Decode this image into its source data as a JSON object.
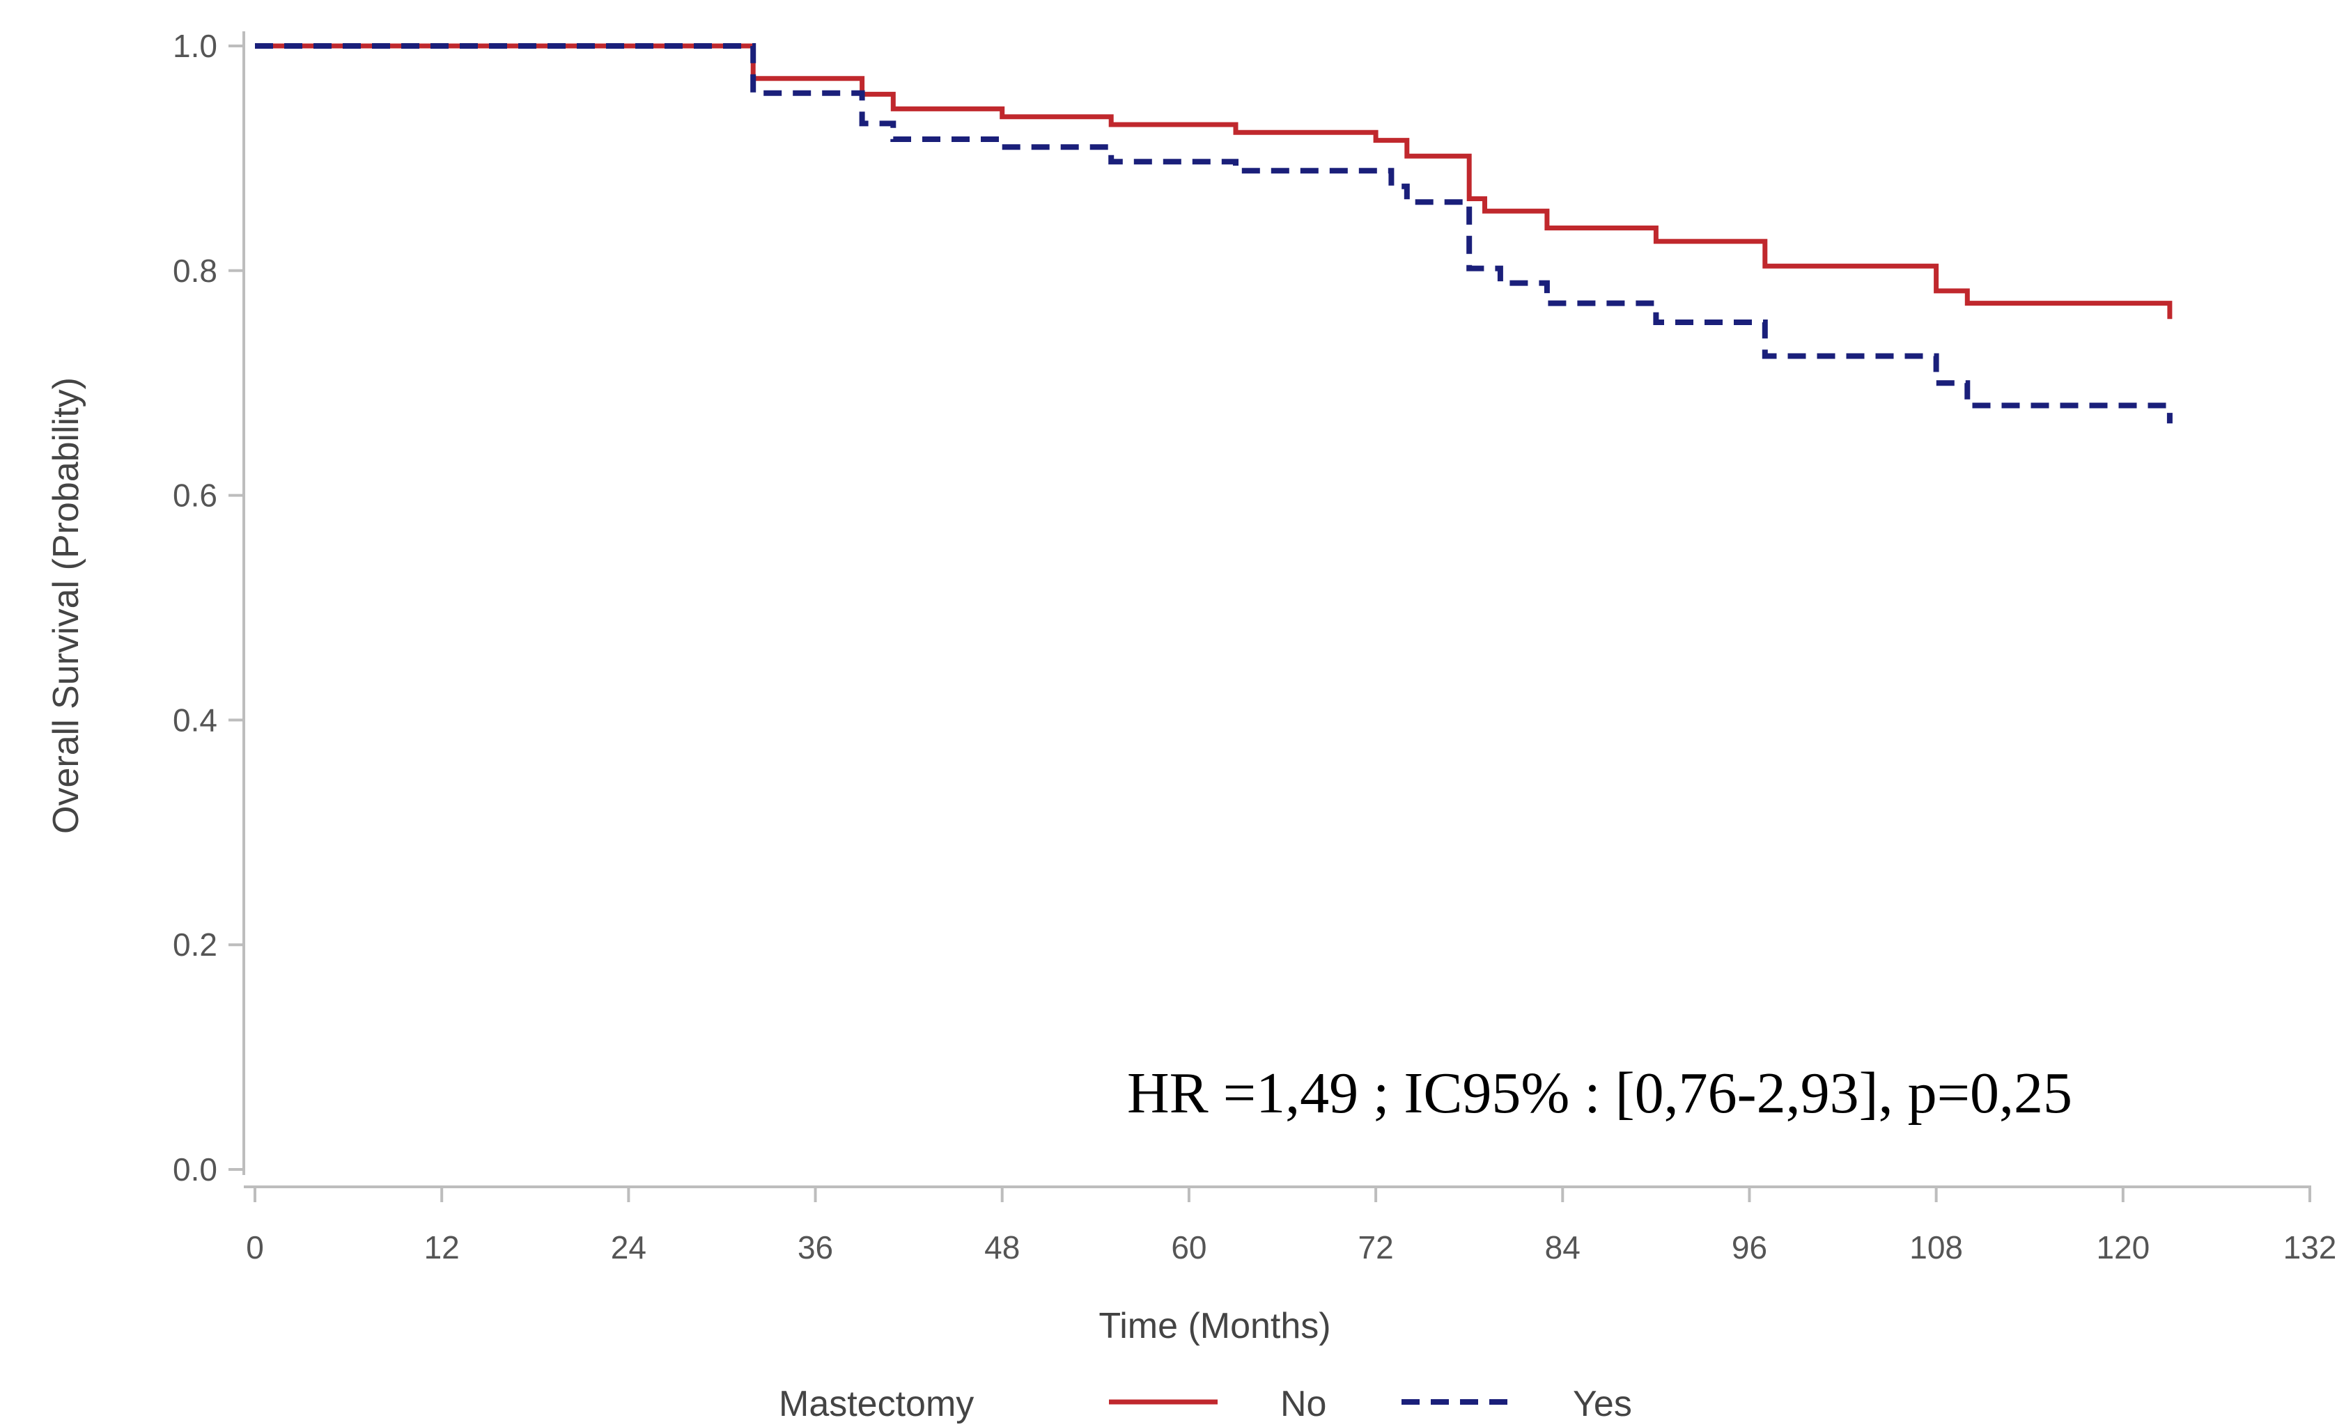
{
  "chart_data": {
    "type": "line",
    "title": "",
    "xlabel": "Time (Months)",
    "ylabel": "Overall Survival (Probability)",
    "xlim": [
      0,
      132
    ],
    "ylim": [
      0,
      1
    ],
    "x_ticks": [
      "0",
      "12",
      "24",
      "36",
      "48",
      "60",
      "72",
      "84",
      "96",
      "108",
      "120",
      "132"
    ],
    "y_ticks": [
      "0.0",
      "0.2",
      "0.4",
      "0.6",
      "0.8",
      "1.0"
    ],
    "legend": {
      "title": "Mastectomy",
      "placement": "bottom"
    },
    "annotation": "HR =1,49 ; IC95% : [0,76-2,93], p=0,25",
    "step": true,
    "grid": false,
    "series": [
      {
        "name": "No",
        "color": "#c0282d",
        "dash": "solid",
        "points": [
          [
            0,
            1.0
          ],
          [
            32,
            1.0
          ],
          [
            32,
            0.971
          ],
          [
            39,
            0.971
          ],
          [
            39,
            0.957
          ],
          [
            41,
            0.957
          ],
          [
            41,
            0.944
          ],
          [
            48,
            0.944
          ],
          [
            48,
            0.937
          ],
          [
            55,
            0.937
          ],
          [
            55,
            0.93
          ],
          [
            63,
            0.93
          ],
          [
            63,
            0.923
          ],
          [
            72,
            0.923
          ],
          [
            72,
            0.916
          ],
          [
            74,
            0.916
          ],
          [
            74,
            0.902
          ],
          [
            78,
            0.902
          ],
          [
            78,
            0.864
          ],
          [
            79,
            0.864
          ],
          [
            79,
            0.853
          ],
          [
            83,
            0.853
          ],
          [
            83,
            0.838
          ],
          [
            90,
            0.838
          ],
          [
            90,
            0.826
          ],
          [
            97,
            0.826
          ],
          [
            97,
            0.804
          ],
          [
            108,
            0.804
          ],
          [
            108,
            0.782
          ],
          [
            110,
            0.782
          ],
          [
            110,
            0.771
          ],
          [
            123,
            0.771
          ],
          [
            123,
            0.757
          ]
        ]
      },
      {
        "name": "Yes",
        "color": "#1a1f7a",
        "dash": "dashed",
        "points": [
          [
            0,
            1.0
          ],
          [
            32,
            1.0
          ],
          [
            32,
            0.958
          ],
          [
            39,
            0.958
          ],
          [
            39,
            0.931
          ],
          [
            41,
            0.931
          ],
          [
            41,
            0.917
          ],
          [
            48,
            0.917
          ],
          [
            48,
            0.91
          ],
          [
            55,
            0.91
          ],
          [
            55,
            0.897
          ],
          [
            63,
            0.897
          ],
          [
            63,
            0.889
          ],
          [
            73,
            0.889
          ],
          [
            73,
            0.875
          ],
          [
            74,
            0.875
          ],
          [
            74,
            0.861
          ],
          [
            78,
            0.861
          ],
          [
            78,
            0.802
          ],
          [
            80,
            0.802
          ],
          [
            80,
            0.789
          ],
          [
            83,
            0.789
          ],
          [
            83,
            0.771
          ],
          [
            90,
            0.771
          ],
          [
            90,
            0.754
          ],
          [
            97,
            0.754
          ],
          [
            97,
            0.724
          ],
          [
            108,
            0.724
          ],
          [
            108,
            0.7
          ],
          [
            110,
            0.7
          ],
          [
            110,
            0.68
          ],
          [
            123,
            0.68
          ],
          [
            123,
            0.664
          ]
        ]
      }
    ]
  }
}
